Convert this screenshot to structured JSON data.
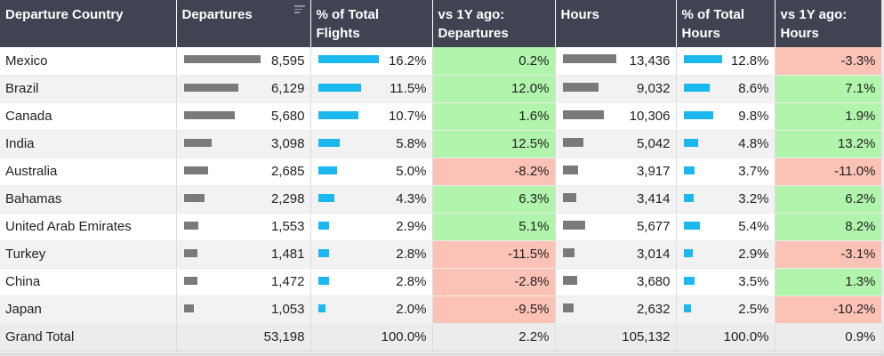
{
  "headers": [
    {
      "label": "Departure Country"
    },
    {
      "label": "Departures",
      "sortable": true
    },
    {
      "label": "% of Total\nFlights"
    },
    {
      "label": "vs 1Y ago:\nDepartures"
    },
    {
      "label": "Hours"
    },
    {
      "label": "% of Total\nHours"
    },
    {
      "label": "vs 1Y ago:\nHours"
    }
  ],
  "colors": {
    "header_bg": "#404452",
    "positive": "#b1f5ac",
    "negative": "#fcc2b5",
    "bar_gray": "#7a7a7a",
    "bar_blue": "#1ab8ee"
  },
  "rows": [
    {
      "country": "Mexico",
      "departures": "8,595",
      "dep_value": 8595,
      "pct_flights": "16.2%",
      "pct_flights_value": 16.2,
      "vs_dep": "0.2%",
      "vs_dep_value": 0.2,
      "hours": "13,436",
      "hours_value": 13436,
      "pct_hours": "12.8%",
      "pct_hours_value": 12.8,
      "vs_hours": "-3.3%",
      "vs_hours_value": -3.3
    },
    {
      "country": "Brazil",
      "departures": "6,129",
      "dep_value": 6129,
      "pct_flights": "11.5%",
      "pct_flights_value": 11.5,
      "vs_dep": "12.0%",
      "vs_dep_value": 12.0,
      "hours": "9,032",
      "hours_value": 9032,
      "pct_hours": "8.6%",
      "pct_hours_value": 8.6,
      "vs_hours": "7.1%",
      "vs_hours_value": 7.1
    },
    {
      "country": "Canada",
      "departures": "5,680",
      "dep_value": 5680,
      "pct_flights": "10.7%",
      "pct_flights_value": 10.7,
      "vs_dep": "1.6%",
      "vs_dep_value": 1.6,
      "hours": "10,306",
      "hours_value": 10306,
      "pct_hours": "9.8%",
      "pct_hours_value": 9.8,
      "vs_hours": "1.9%",
      "vs_hours_value": 1.9
    },
    {
      "country": "India",
      "departures": "3,098",
      "dep_value": 3098,
      "pct_flights": "5.8%",
      "pct_flights_value": 5.8,
      "vs_dep": "12.5%",
      "vs_dep_value": 12.5,
      "hours": "5,042",
      "hours_value": 5042,
      "pct_hours": "4.8%",
      "pct_hours_value": 4.8,
      "vs_hours": "13.2%",
      "vs_hours_value": 13.2
    },
    {
      "country": "Australia",
      "departures": "2,685",
      "dep_value": 2685,
      "pct_flights": "5.0%",
      "pct_flights_value": 5.0,
      "vs_dep": "-8.2%",
      "vs_dep_value": -8.2,
      "hours": "3,917",
      "hours_value": 3917,
      "pct_hours": "3.7%",
      "pct_hours_value": 3.7,
      "vs_hours": "-11.0%",
      "vs_hours_value": -11.0
    },
    {
      "country": "Bahamas",
      "departures": "2,298",
      "dep_value": 2298,
      "pct_flights": "4.3%",
      "pct_flights_value": 4.3,
      "vs_dep": "6.3%",
      "vs_dep_value": 6.3,
      "hours": "3,414",
      "hours_value": 3414,
      "pct_hours": "3.2%",
      "pct_hours_value": 3.2,
      "vs_hours": "6.2%",
      "vs_hours_value": 6.2
    },
    {
      "country": "United Arab Emirates",
      "departures": "1,553",
      "dep_value": 1553,
      "pct_flights": "2.9%",
      "pct_flights_value": 2.9,
      "vs_dep": "5.1%",
      "vs_dep_value": 5.1,
      "hours": "5,677",
      "hours_value": 5677,
      "pct_hours": "5.4%",
      "pct_hours_value": 5.4,
      "vs_hours": "8.2%",
      "vs_hours_value": 8.2
    },
    {
      "country": "Turkey",
      "departures": "1,481",
      "dep_value": 1481,
      "pct_flights": "2.8%",
      "pct_flights_value": 2.8,
      "vs_dep": "-11.5%",
      "vs_dep_value": -11.5,
      "hours": "3,014",
      "hours_value": 3014,
      "pct_hours": "2.9%",
      "pct_hours_value": 2.9,
      "vs_hours": "-3.1%",
      "vs_hours_value": -3.1
    },
    {
      "country": "China",
      "departures": "1,472",
      "dep_value": 1472,
      "pct_flights": "2.8%",
      "pct_flights_value": 2.8,
      "vs_dep": "-2.8%",
      "vs_dep_value": -2.8,
      "hours": "3,680",
      "hours_value": 3680,
      "pct_hours": "3.5%",
      "pct_hours_value": 3.5,
      "vs_hours": "1.3%",
      "vs_hours_value": 1.3
    },
    {
      "country": "Japan",
      "departures": "1,053",
      "dep_value": 1053,
      "pct_flights": "2.0%",
      "pct_flights_value": 2.0,
      "vs_dep": "-9.5%",
      "vs_dep_value": -9.5,
      "hours": "2,632",
      "hours_value": 2632,
      "pct_hours": "2.5%",
      "pct_hours_value": 2.5,
      "vs_hours": "-10.2%",
      "vs_hours_value": -10.2
    }
  ],
  "total": {
    "label": "Grand Total",
    "departures": "53,198",
    "pct_flights": "100.0%",
    "vs_dep": "2.2%",
    "hours": "105,132",
    "pct_hours": "100.0%",
    "vs_hours": "0.9%"
  }
}
